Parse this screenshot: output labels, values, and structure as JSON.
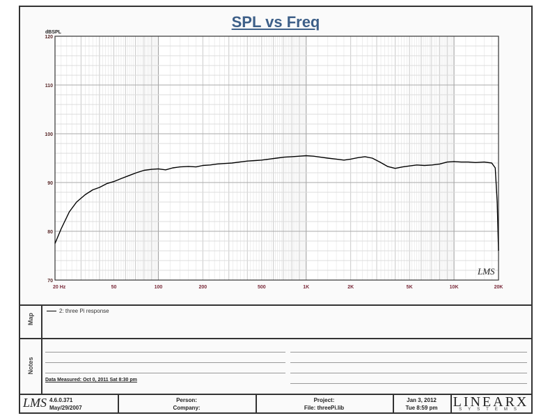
{
  "chart_data": {
    "type": "line",
    "title": "SPL vs Freq",
    "ylabel": "dBSPL",
    "xlabel": "",
    "x_scale": "log",
    "xlim": [
      20,
      20000
    ],
    "ylim": [
      70,
      120
    ],
    "y_ticks": [
      70,
      80,
      90,
      100,
      110,
      120
    ],
    "x_tick_labels": [
      {
        "label": "20  Hz",
        "x": 20
      },
      {
        "label": "50",
        "x": 50
      },
      {
        "label": "100",
        "x": 100
      },
      {
        "label": "200",
        "x": 200
      },
      {
        "label": "500",
        "x": 500
      },
      {
        "label": "1K",
        "x": 1000
      },
      {
        "label": "2K",
        "x": 2000
      },
      {
        "label": "5K",
        "x": 5000
      },
      {
        "label": "10K",
        "x": 10000
      },
      {
        "label": "20K",
        "x": 20000
      }
    ],
    "grid": true,
    "series": [
      {
        "name": "2: three Pi response",
        "color": "#000000",
        "x": [
          20,
          22,
          25,
          28,
          32,
          36,
          40,
          45,
          50,
          56,
          63,
          71,
          80,
          90,
          100,
          112,
          125,
          140,
          160,
          180,
          200,
          224,
          250,
          280,
          315,
          355,
          400,
          450,
          500,
          560,
          630,
          710,
          800,
          900,
          1000,
          1120,
          1250,
          1400,
          1600,
          1800,
          2000,
          2240,
          2500,
          2800,
          3150,
          3550,
          4000,
          4500,
          5000,
          5600,
          6300,
          7100,
          8000,
          9000,
          10000,
          11200,
          12500,
          14000,
          16000,
          18000,
          19000,
          19600,
          20000
        ],
        "y": [
          77.5,
          80.5,
          84.0,
          86.0,
          87.5,
          88.5,
          89.0,
          89.8,
          90.2,
          90.8,
          91.4,
          92.0,
          92.5,
          92.7,
          92.8,
          92.6,
          93.0,
          93.2,
          93.3,
          93.2,
          93.5,
          93.6,
          93.8,
          93.9,
          94.0,
          94.2,
          94.4,
          94.5,
          94.6,
          94.8,
          95.0,
          95.2,
          95.3,
          95.4,
          95.5,
          95.4,
          95.2,
          95.0,
          94.8,
          94.6,
          94.8,
          95.1,
          95.3,
          95.0,
          94.2,
          93.3,
          92.9,
          93.2,
          93.4,
          93.6,
          93.5,
          93.6,
          93.8,
          94.2,
          94.3,
          94.2,
          94.2,
          94.1,
          94.2,
          94.0,
          93.0,
          86.0,
          76.0
        ]
      }
    ]
  },
  "watermark": "LMS",
  "legend_label": "2: three Pi response",
  "side_labels": {
    "map": "Map",
    "notes": "Notes"
  },
  "notes": {
    "date_measured": "Data Measured: Oct  0, 2011  Sat  8:30 pm"
  },
  "footer": {
    "logo": "LMS",
    "version": "4.6.0.371",
    "version_date": "May/29/2007",
    "person_label": "Person:",
    "company_label": "Company:",
    "project_label": "Project:",
    "file_label": "File: threePi.lib",
    "date": "Jan  3, 2012",
    "time": "Tue  8:59 pm",
    "brand": "LINEARX",
    "brand_sub": "SYSTEMS"
  }
}
